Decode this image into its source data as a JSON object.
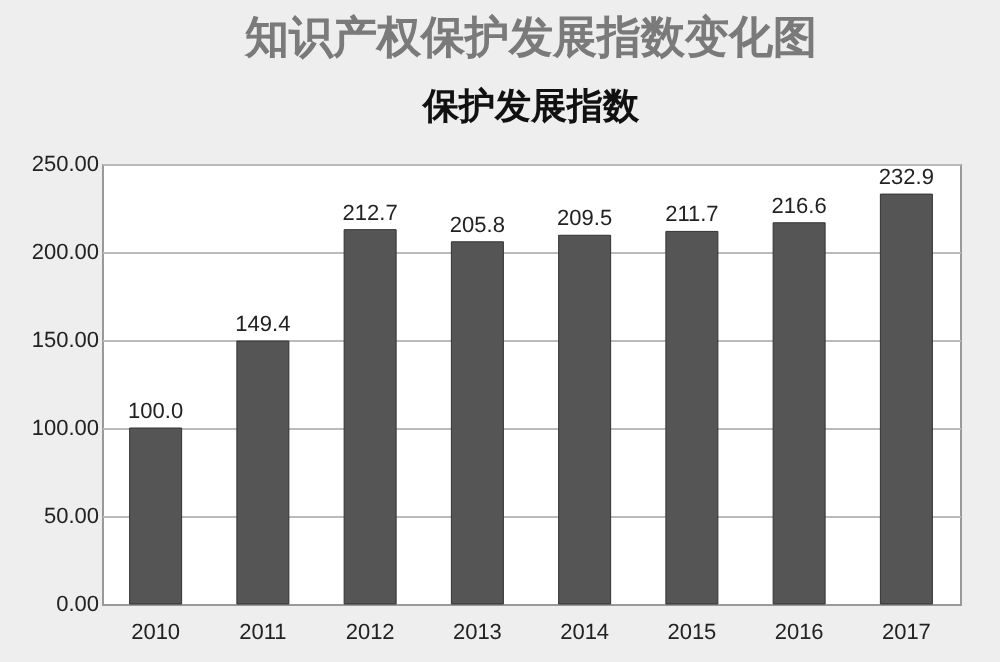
{
  "chart_data": {
    "type": "bar",
    "title": "知识产权保护发展指数变化图",
    "subtitle": "保护发展指数",
    "categories": [
      "2010",
      "2011",
      "2012",
      "2013",
      "2014",
      "2015",
      "2016",
      "2017"
    ],
    "values": [
      100.0,
      149.4,
      212.7,
      205.8,
      209.5,
      211.7,
      216.6,
      232.9
    ],
    "value_labels": [
      "100.0",
      "149.4",
      "212.7",
      "205.8",
      "209.5",
      "211.7",
      "216.6",
      "232.9"
    ],
    "color": "#555555",
    "ylim": [
      0,
      250
    ],
    "yticks": [
      {
        "value": 0,
        "label": "0.00"
      },
      {
        "value": 50,
        "label": "50.00"
      },
      {
        "value": 100,
        "label": "100.00"
      },
      {
        "value": 150,
        "label": "150.00"
      },
      {
        "value": 200,
        "label": "200.00"
      },
      {
        "value": 250,
        "label": "250.00"
      }
    ],
    "grid": "y"
  }
}
